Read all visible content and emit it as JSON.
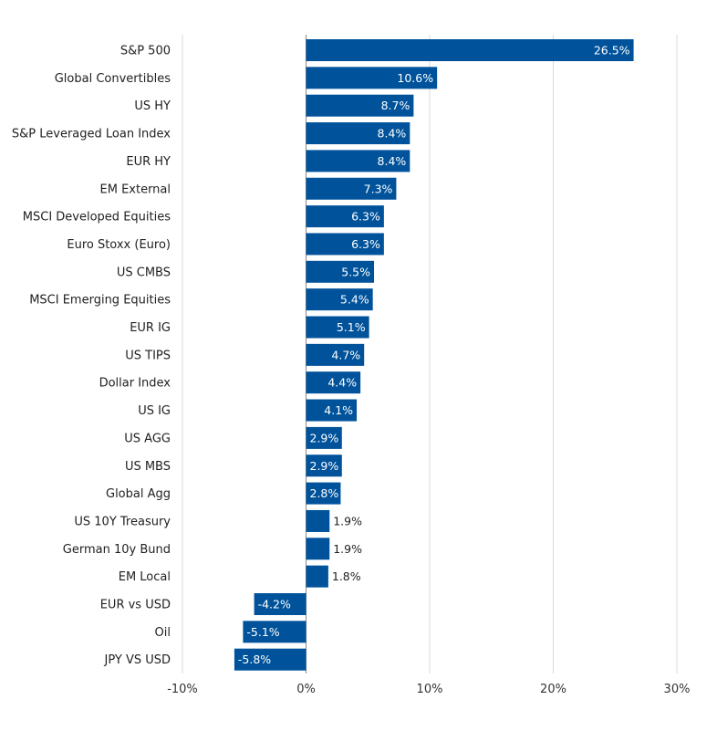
{
  "chart_data": {
    "type": "bar",
    "orientation": "horizontal",
    "title": "",
    "xlabel": "",
    "ylabel": "",
    "xlim": [
      -10,
      30
    ],
    "x_ticks": [
      {
        "value": -10,
        "label": "-10%"
      },
      {
        "value": 0,
        "label": "0%"
      },
      {
        "value": 10,
        "label": "10%"
      },
      {
        "value": 20,
        "label": "20%"
      },
      {
        "value": 30,
        "label": "30%"
      }
    ],
    "grid": "vertical",
    "legend": "none",
    "bar_color": "#00539b",
    "categories": [
      "S&P 500",
      "Global Convertibles",
      "US HY",
      "S&P Leveraged Loan Index",
      "EUR HY",
      "EM External",
      "MSCI Developed Equities",
      "Euro Stoxx (Euro)",
      "US CMBS",
      "MSCI Emerging Equities",
      "EUR IG",
      "US TIPS",
      "Dollar Index",
      "US IG",
      "US AGG",
      "US MBS",
      "Global Agg",
      "US 10Y Treasury",
      "German 10y Bund",
      "EM Local",
      "EUR vs USD",
      "Oil",
      "JPY VS USD"
    ],
    "values": [
      26.5,
      10.6,
      8.7,
      8.4,
      8.4,
      7.3,
      6.3,
      6.3,
      5.5,
      5.4,
      5.1,
      4.7,
      4.4,
      4.1,
      2.9,
      2.9,
      2.8,
      1.9,
      1.9,
      1.8,
      -4.2,
      -5.1,
      -5.8
    ],
    "value_labels": [
      "26.5%",
      "10.6%",
      "8.7%",
      "8.4%",
      "8.4%",
      "7.3%",
      "6.3%",
      "6.3%",
      "5.5%",
      "5.4%",
      "5.1%",
      "4.7%",
      "4.4%",
      "4.1%",
      "2.9%",
      "2.9%",
      "2.8%",
      "1.9%",
      "1.9%",
      "1.8%",
      "-4.2%",
      "-5.1%",
      "-5.8%"
    ]
  }
}
